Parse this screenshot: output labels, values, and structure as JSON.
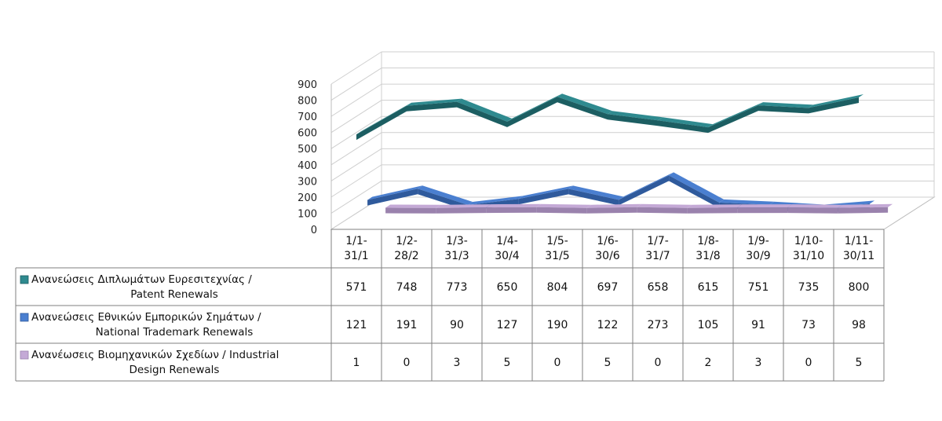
{
  "chart_data": {
    "type": "line",
    "categories": [
      [
        "1/1-",
        "31/1"
      ],
      [
        "1/2-",
        "28/2"
      ],
      [
        "1/3-",
        "31/3"
      ],
      [
        "1/4-",
        "30/4"
      ],
      [
        "1/5-",
        "31/5"
      ],
      [
        "1/6-",
        "30/6"
      ],
      [
        "1/7-",
        "31/7"
      ],
      [
        "1/8-",
        "31/8"
      ],
      [
        "1/9-",
        "30/9"
      ],
      [
        "1/10-",
        "31/10"
      ],
      [
        "1/11-",
        "30/11"
      ]
    ],
    "yticks": [
      "0",
      "100",
      "200",
      "300",
      "400",
      "500",
      "600",
      "700",
      "800",
      "900"
    ],
    "ylim": [
      0,
      900
    ],
    "series": [
      {
        "name": [
          "Ανανεώσεις Διπλωμάτων Ευρεσιτεχνίας  /",
          "Patent Renewals"
        ],
        "color": "#2f8a8f",
        "dark": "#1c5e62",
        "values": [
          571,
          748,
          773,
          650,
          804,
          697,
          658,
          615,
          751,
          735,
          800
        ]
      },
      {
        "name": [
          "Ανανεώσεις Εθνικών Εμπορικών Σημάτων /",
          "National Trademark Renewals"
        ],
        "color": "#4a7fd0",
        "dark": "#2f5a9c",
        "values": [
          121,
          191,
          90,
          127,
          190,
          122,
          273,
          105,
          91,
          73,
          98
        ]
      },
      {
        "name": [
          "Ανανέωσεις Βιομηχανικών Σχεδίων / Industrial",
          "Design Renewals"
        ],
        "color": "#c4a9d6",
        "dark": "#9a82ad",
        "values": [
          1,
          0,
          3,
          5,
          0,
          5,
          0,
          2,
          3,
          0,
          5
        ]
      }
    ]
  }
}
